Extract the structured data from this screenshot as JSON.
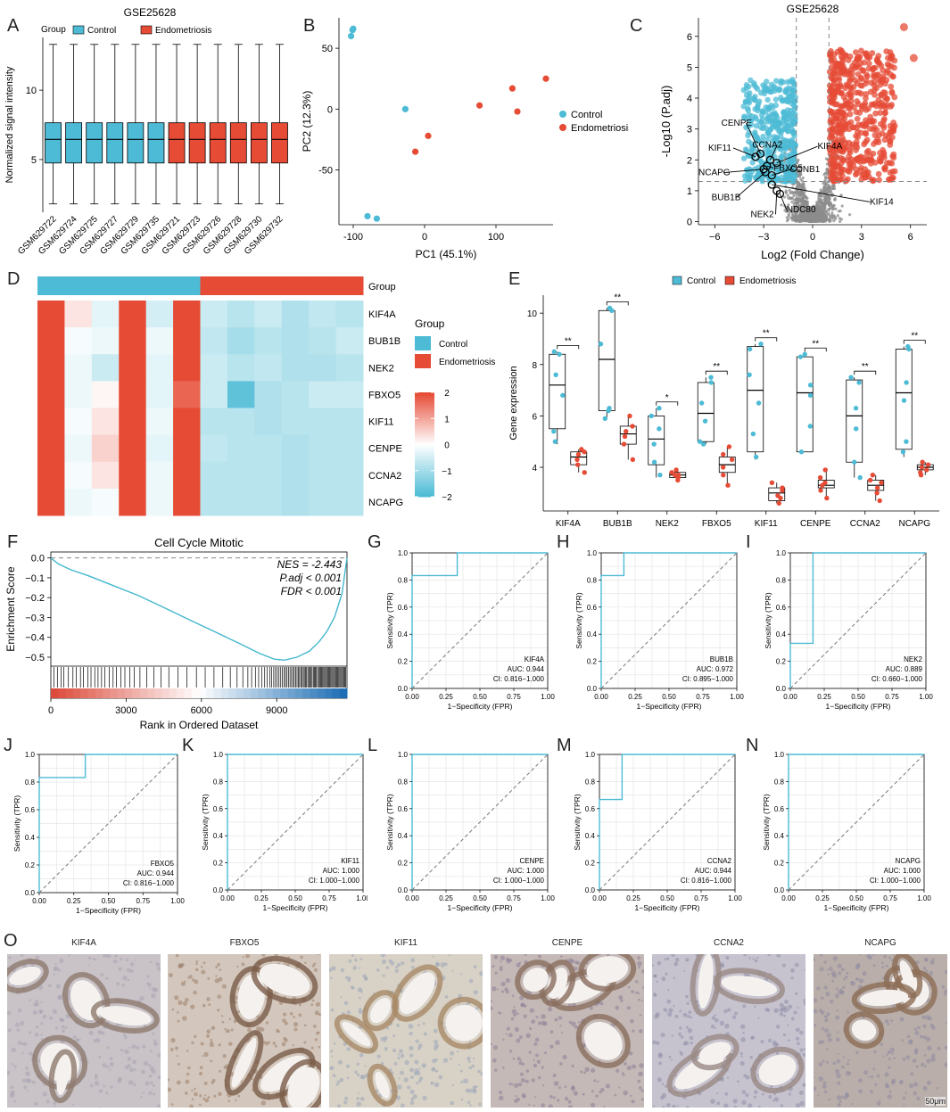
{
  "colors": {
    "control": "#4DBBD5",
    "endo": "#E64B35",
    "ns": "#8c8c8c",
    "roc": "#4DBBD5"
  },
  "panel_letters": [
    "A",
    "B",
    "C",
    "D",
    "E",
    "F",
    "G",
    "H",
    "I",
    "J",
    "K",
    "L",
    "M",
    "N",
    "O"
  ],
  "chart_data": [
    {
      "id": "A",
      "type": "box",
      "title": "GSE25628",
      "legend_title": "Group",
      "legend": [
        "Control",
        "Endometriosis"
      ],
      "ylabel": "Normalized signal intensity",
      "yticks": [
        5,
        10
      ],
      "ylim": [
        1.2,
        13.8
      ],
      "categories": [
        "GSM629722",
        "GSM629724",
        "GSM629725",
        "GSM629727",
        "GSM629729",
        "GSM629735",
        "GSM629721",
        "GSM629723",
        "GSM629726",
        "GSM629728",
        "GSM629730",
        "GSM629732"
      ],
      "groups": [
        "Control",
        "Control",
        "Control",
        "Control",
        "Control",
        "Control",
        "Endometriosis",
        "Endometriosis",
        "Endometriosis",
        "Endometriosis",
        "Endometriosis",
        "Endometriosis"
      ],
      "stats": {
        "min": 1.8,
        "q1": 4.75,
        "median": 6.45,
        "q3": 7.65,
        "max": 13.3
      }
    },
    {
      "id": "B",
      "type": "scatter",
      "xlabel": "PC1 (45.1%)",
      "ylabel": "PC2 (12.3%)",
      "xticks": [
        -100,
        0,
        100
      ],
      "yticks": [
        -50,
        0,
        50
      ],
      "xlim": [
        -120,
        180
      ],
      "ylim": [
        -95,
        75
      ],
      "legend": [
        "Control",
        "Endometriosis"
      ],
      "series": [
        {
          "name": "Control",
          "points": [
            [
              -100,
              66
            ],
            [
              -103,
              60
            ],
            [
              -27,
              0
            ],
            [
              -80,
              -88
            ],
            [
              -67,
              -90
            ],
            [
              -101,
              65
            ]
          ]
        },
        {
          "name": "Endometriosis",
          "points": [
            [
              -13,
              -35
            ],
            [
              5,
              -22
            ],
            [
              77,
              3
            ],
            [
              123,
              17
            ],
            [
              130,
              -2
            ],
            [
              170,
              25
            ]
          ]
        }
      ]
    },
    {
      "id": "C",
      "type": "volcano",
      "title": "GSE25628",
      "xlabel": "Log2 (Fold Change)",
      "ylabel": "-Log10 (P.adj)",
      "xticks": [
        -6,
        -3,
        0,
        3,
        6
      ],
      "yticks": [
        0,
        1,
        2,
        3,
        4,
        5,
        6
      ],
      "xlim": [
        -7,
        7
      ],
      "ylim": [
        -0.1,
        6.6
      ],
      "fc_threshold": 1,
      "p_threshold": 1.3,
      "labels": [
        {
          "gene": "CENPE",
          "x": -3.2,
          "y": 2.2
        },
        {
          "gene": "KIF11",
          "x": -3.5,
          "y": 2.1
        },
        {
          "gene": "CCNA2",
          "x": -2.6,
          "y": 2.0
        },
        {
          "gene": "KIF4A",
          "x": -2.2,
          "y": 1.9
        },
        {
          "gene": "FBXO5",
          "x": -2.8,
          "y": 1.8
        },
        {
          "gene": "NCAPG",
          "x": -3.0,
          "y": 1.7
        },
        {
          "gene": "CCNB1",
          "x": -2.5,
          "y": 1.5
        },
        {
          "gene": "BUB1B",
          "x": -2.9,
          "y": 1.6
        },
        {
          "gene": "KIF14",
          "x": -2.5,
          "y": 1.2
        },
        {
          "gene": "NEK2",
          "x": -2.2,
          "y": 1.0
        },
        {
          "gene": "NDC80",
          "x": -2.0,
          "y": 0.9
        }
      ]
    },
    {
      "id": "D",
      "type": "heatmap",
      "col_group_label": "Group",
      "legend_title": "Group",
      "legend": [
        "Control",
        "Endometriosis"
      ],
      "groups": [
        "Control",
        "Control",
        "Control",
        "Control",
        "Control",
        "Control",
        "Endometriosis",
        "Endometriosis",
        "Endometriosis",
        "Endometriosis",
        "Endometriosis",
        "Endometriosis"
      ],
      "rows": [
        "KIF4A",
        "BUB1B",
        "NEK2",
        "FBXO5",
        "KIF11",
        "CENPE",
        "CCNA2",
        "NCAPG"
      ],
      "scale_ticks": [
        2,
        1,
        0,
        -1,
        -2
      ],
      "values": [
        [
          2.0,
          0.3,
          -0.3,
          2.0,
          -0.5,
          2.0,
          -0.6,
          -0.8,
          -0.6,
          -0.9,
          -0.7,
          -0.8
        ],
        [
          2.0,
          -0.1,
          -0.2,
          2.0,
          -0.2,
          2.0,
          -0.7,
          -1.0,
          -0.8,
          -0.9,
          -0.8,
          -0.6
        ],
        [
          2.0,
          -0.2,
          -0.6,
          2.0,
          -0.3,
          2.0,
          -0.6,
          -0.8,
          -0.7,
          -0.9,
          -0.9,
          -0.8
        ],
        [
          2.0,
          -0.2,
          0.1,
          2.0,
          -0.3,
          1.7,
          -0.6,
          -1.8,
          -0.9,
          -0.8,
          -0.6,
          -0.6
        ],
        [
          2.0,
          -0.1,
          0.3,
          2.0,
          -0.2,
          2.0,
          -0.8,
          -0.8,
          -0.9,
          -0.8,
          -0.8,
          -0.8
        ],
        [
          2.0,
          -0.2,
          0.5,
          2.0,
          -0.3,
          2.0,
          -0.7,
          -0.8,
          -0.8,
          -0.9,
          -0.8,
          -0.8
        ],
        [
          2.0,
          -0.1,
          0.3,
          2.0,
          -0.2,
          2.0,
          -0.8,
          -0.8,
          -0.8,
          -0.9,
          -0.8,
          -0.8
        ],
        [
          2.0,
          -0.2,
          -0.1,
          2.0,
          -0.2,
          2.0,
          -0.8,
          -0.8,
          -0.8,
          -0.9,
          -0.8,
          -0.8
        ]
      ]
    },
    {
      "id": "E",
      "type": "box",
      "ylabel": "Gene expression",
      "yticks": [
        4,
        6,
        8,
        10
      ],
      "ylim": [
        2.3,
        10.7
      ],
      "legend": [
        "Control",
        "Endometriosis"
      ],
      "categories": [
        "KIF4A",
        "BUB1B",
        "NEK2",
        "FBXO5",
        "KIF11",
        "CENPE",
        "CCNA2",
        "NCAPG"
      ],
      "significance": [
        "**",
        "**",
        "*",
        "**",
        "**",
        "**",
        "**",
        "**"
      ],
      "control": [
        {
          "min": 4.9,
          "q1": 5.5,
          "median": 7.2,
          "q3": 8.4,
          "max": 8.5,
          "points": [
            5.0,
            5.4,
            6.8,
            7.6,
            8.4,
            8.5
          ]
        },
        {
          "min": 5.9,
          "q1": 6.2,
          "median": 8.2,
          "q3": 10.1,
          "max": 10.2,
          "points": [
            5.9,
            6.2,
            6.3,
            8.8,
            10.1,
            10.2
          ]
        },
        {
          "min": 3.6,
          "q1": 4.1,
          "median": 5.1,
          "q3": 6.0,
          "max": 6.3,
          "points": [
            3.7,
            4.2,
            4.9,
            5.5,
            6.0,
            6.3
          ]
        },
        {
          "min": 4.9,
          "q1": 5.0,
          "median": 6.1,
          "q3": 7.3,
          "max": 7.5,
          "points": [
            4.9,
            5.0,
            5.8,
            6.5,
            7.3,
            7.5
          ]
        },
        {
          "min": 4.3,
          "q1": 4.6,
          "median": 7.0,
          "q3": 8.7,
          "max": 8.8,
          "points": [
            4.4,
            5.3,
            6.5,
            7.6,
            8.6,
            8.8
          ]
        },
        {
          "min": 4.6,
          "q1": 4.6,
          "median": 6.9,
          "q3": 8.3,
          "max": 8.4,
          "points": [
            4.6,
            5.6,
            6.8,
            7.2,
            8.3,
            8.4
          ]
        },
        {
          "min": 3.6,
          "q1": 4.2,
          "median": 6.0,
          "q3": 7.4,
          "max": 7.5,
          "points": [
            3.6,
            4.2,
            5.5,
            6.3,
            7.3,
            7.5
          ]
        },
        {
          "min": 4.4,
          "q1": 4.7,
          "median": 6.9,
          "q3": 8.6,
          "max": 8.7,
          "points": [
            4.6,
            5.0,
            6.6,
            7.3,
            8.6,
            8.7
          ]
        }
      ],
      "endo": [
        {
          "min": 3.8,
          "q1": 4.1,
          "median": 4.4,
          "q3": 4.6,
          "max": 4.7,
          "points": [
            3.8,
            4.1,
            4.3,
            4.5,
            4.6,
            4.7
          ]
        },
        {
          "min": 4.3,
          "q1": 4.9,
          "median": 5.3,
          "q3": 5.6,
          "max": 6.0,
          "points": [
            4.3,
            4.9,
            5.2,
            5.4,
            5.6,
            6.0
          ]
        },
        {
          "min": 3.5,
          "q1": 3.6,
          "median": 3.7,
          "q3": 3.8,
          "max": 3.9,
          "points": [
            3.5,
            3.6,
            3.7,
            3.7,
            3.8,
            3.9
          ]
        },
        {
          "min": 3.3,
          "q1": 3.8,
          "median": 4.1,
          "q3": 4.4,
          "max": 4.8,
          "points": [
            3.3,
            3.7,
            4.0,
            4.3,
            4.5,
            4.8
          ]
        },
        {
          "min": 2.6,
          "q1": 2.7,
          "median": 3.0,
          "q3": 3.2,
          "max": 3.4,
          "points": [
            2.6,
            2.8,
            2.9,
            3.1,
            3.2,
            3.4
          ]
        },
        {
          "min": 2.8,
          "q1": 3.2,
          "median": 3.3,
          "q3": 3.5,
          "max": 3.9,
          "points": [
            2.8,
            3.1,
            3.3,
            3.4,
            3.6,
            3.9
          ]
        },
        {
          "min": 2.7,
          "q1": 3.1,
          "median": 3.3,
          "q3": 3.5,
          "max": 3.7,
          "points": [
            2.7,
            3.0,
            3.2,
            3.4,
            3.5,
            3.7
          ]
        },
        {
          "min": 3.7,
          "q1": 3.9,
          "median": 4.0,
          "q3": 4.1,
          "max": 4.2,
          "points": [
            3.7,
            3.8,
            3.9,
            4.0,
            4.1,
            4.2
          ]
        }
      ]
    },
    {
      "id": "F",
      "type": "line",
      "title": "Cell Cycle Mitotic",
      "xlabel": "Rank in Ordered Dataset",
      "ylabel": "Enrichment Score",
      "xticks": [
        0,
        3000,
        6000,
        9000
      ],
      "yticks": [
        0.0,
        -0.1,
        -0.2,
        -0.3,
        -0.4,
        -0.5
      ],
      "xlim": [
        0,
        11800
      ],
      "ylim": [
        -0.545,
        0.03
      ],
      "stats": [
        "NES = -2.443",
        "P.adj < 0.001",
        "FDR < 0.001"
      ],
      "x": [
        0,
        300,
        800,
        1500,
        2500,
        3500,
        4500,
        5500,
        6500,
        7500,
        8300,
        8900,
        9300,
        9800,
        10300,
        10700,
        11000,
        11300,
        11600,
        11800
      ],
      "y": [
        0,
        -0.03,
        -0.06,
        -0.09,
        -0.14,
        -0.19,
        -0.25,
        -0.31,
        -0.37,
        -0.43,
        -0.48,
        -0.51,
        -0.515,
        -0.5,
        -0.47,
        -0.42,
        -0.37,
        -0.3,
        -0.18,
        0.0
      ],
      "hit_ranks": [
        120,
        260,
        410,
        520,
        700,
        880,
        1010,
        1180,
        1300,
        1470,
        1600,
        1750,
        1880,
        2020,
        2150,
        2330,
        2480,
        2610,
        2790,
        2950,
        3140,
        3320,
        3550,
        3820,
        4100,
        4390,
        4700,
        5060,
        5420,
        5800,
        6150,
        6500,
        6850,
        7150,
        7420,
        7650,
        7850,
        8000,
        8150,
        8280,
        8400,
        8520,
        8620,
        8720,
        8800,
        8880,
        8950,
        9020,
        9090,
        9160,
        9220,
        9290,
        9350,
        9410,
        9470,
        9530,
        9590,
        9650,
        9700,
        9760,
        9810,
        9860,
        9910,
        9960,
        10010,
        10060,
        10100,
        10150,
        10190,
        10240,
        10280,
        10330,
        10370,
        10410,
        10460,
        10500,
        10540,
        10580,
        10630,
        10670,
        10710,
        10750,
        10790,
        10830,
        10870,
        10910,
        10950,
        10990,
        11030,
        11070,
        11110,
        11150,
        11190,
        11230,
        11270,
        11310,
        11350,
        11390,
        11430,
        11470,
        11510,
        11550,
        11590,
        11630,
        11670,
        11710,
        11750
      ]
    },
    {
      "id": "G",
      "type": "line",
      "gene": "KIF4A",
      "auc": "AUC: 0.944",
      "ci": "CI: 0.816−1.000",
      "xlabel": "1−Specificity (FPR)",
      "ylabel": "Sensitivity (TPR)",
      "xticks": [
        0.0,
        0.25,
        0.5,
        0.75,
        1.0
      ],
      "yticks": [
        0.0,
        0.2,
        0.4,
        0.6,
        0.8,
        1.0
      ],
      "fpr": [
        0,
        0,
        0.333,
        0.333,
        1
      ],
      "tpr": [
        0,
        0.833,
        0.833,
        1,
        1
      ]
    },
    {
      "id": "H",
      "type": "line",
      "gene": "BUB1B",
      "auc": "AUC: 0.972",
      "ci": "CI: 0.895−1.000",
      "xlabel": "1−Specificity (FPR)",
      "ylabel": "Sensitivity (TPR)",
      "xticks": [
        0.0,
        0.25,
        0.5,
        0.75,
        1.0
      ],
      "yticks": [
        0.0,
        0.2,
        0.4,
        0.6,
        0.8,
        1.0
      ],
      "fpr": [
        0,
        0,
        0.167,
        0.167,
        1
      ],
      "tpr": [
        0,
        0.833,
        0.833,
        1,
        1
      ]
    },
    {
      "id": "I",
      "type": "line",
      "gene": "NEK2",
      "auc": "AUC: 0.889",
      "ci": "CI: 0.660−1.000",
      "xlabel": "1−Specificity (FPR)",
      "ylabel": "Sensitivity (TPR)",
      "xticks": [
        0.0,
        0.25,
        0.5,
        0.75,
        1.0
      ],
      "yticks": [
        0.0,
        0.2,
        0.4,
        0.6,
        0.8,
        1.0
      ],
      "fpr": [
        0,
        0,
        0.167,
        0.167,
        1
      ],
      "tpr": [
        0,
        0.333,
        0.333,
        1,
        1
      ]
    },
    {
      "id": "J",
      "type": "line",
      "gene": "FBXO5",
      "auc": "AUC: 0.944",
      "ci": "CI: 0.816−1.000",
      "xlabel": "1−Specificity (FPR)",
      "ylabel": "Sensitivity (TPR)",
      "xticks": [
        0.0,
        0.25,
        0.5,
        0.75,
        1.0
      ],
      "yticks": [
        0.0,
        0.2,
        0.4,
        0.6,
        0.8,
        1.0
      ],
      "fpr": [
        0,
        0,
        0.333,
        0.333,
        1
      ],
      "tpr": [
        0,
        0.833,
        0.833,
        1,
        1
      ]
    },
    {
      "id": "K",
      "type": "line",
      "gene": "KIF11",
      "auc": "AUC: 1.000",
      "ci": "CI: 1.000−1.000",
      "xlabel": "1−Specificity (FPR)",
      "ylabel": "Sensitivity (TPR)",
      "xticks": [
        0.0,
        0.25,
        0.5,
        0.75,
        1.0
      ],
      "yticks": [
        0.0,
        0.2,
        0.4,
        0.6,
        0.8,
        1.0
      ],
      "fpr": [
        0,
        0,
        1
      ],
      "tpr": [
        0,
        1,
        1
      ]
    },
    {
      "id": "L",
      "type": "line",
      "gene": "CENPE",
      "auc": "AUC: 1.000",
      "ci": "CI: 1.000−1.000",
      "xlabel": "1−Specificity (FPR)",
      "ylabel": "Sensitivity (TPR)",
      "xticks": [
        0.0,
        0.25,
        0.5,
        0.75,
        1.0
      ],
      "yticks": [
        0.0,
        0.2,
        0.4,
        0.6,
        0.8,
        1.0
      ],
      "fpr": [
        0,
        0,
        1
      ],
      "tpr": [
        0,
        1,
        1
      ]
    },
    {
      "id": "M",
      "type": "line",
      "gene": "CCNA2",
      "auc": "AUC: 0.944",
      "ci": "CI: 0.816−1.000",
      "xlabel": "1−Specificity (FPR)",
      "ylabel": "Sensitivity (TPR)",
      "xticks": [
        0.0,
        0.25,
        0.5,
        0.75,
        1.0
      ],
      "yticks": [
        0.0,
        0.2,
        0.4,
        0.6,
        0.8,
        1.0
      ],
      "fpr": [
        0,
        0,
        0.167,
        0.167,
        1
      ],
      "tpr": [
        0,
        0.667,
        0.667,
        1,
        1
      ]
    },
    {
      "id": "N",
      "type": "line",
      "gene": "NCAPG",
      "auc": "AUC: 1.000",
      "ci": "CI: 1.000−1.000",
      "xlabel": "1−Specificity (FPR)",
      "ylabel": "Sensitivity (TPR)",
      "xticks": [
        0.0,
        0.25,
        0.5,
        0.75,
        1.0
      ],
      "yticks": [
        0.0,
        0.2,
        0.4,
        0.6,
        0.8,
        1.0
      ],
      "fpr": [
        0,
        0,
        1
      ],
      "tpr": [
        0,
        1,
        1
      ]
    }
  ],
  "ihc": {
    "tiles": [
      {
        "label": "KIF4A",
        "bg": "#c9c3c8",
        "gland": "#8f7b6e",
        "tone": "#a8a3b0"
      },
      {
        "label": "FBXO5",
        "bg": "#d3c7bd",
        "gland": "#7a5d48",
        "tone": "#9c7f6b"
      },
      {
        "label": "KIF11",
        "bg": "#d8d1c6",
        "gland": "#a98a66",
        "tone": "#9aa5b8"
      },
      {
        "label": "CENPE",
        "bg": "#c4b9b6",
        "gland": "#8a6e5e",
        "tone": "#8e8098"
      },
      {
        "label": "CCNA2",
        "bg": "#c6c2ce",
        "gland": "#9a8a84",
        "tone": "#8f8fa8"
      },
      {
        "label": "NCAPG",
        "bg": "#b9aea9",
        "gland": "#8c6d55",
        "tone": "#8f8aa0"
      }
    ],
    "scale_bar": "50μm"
  }
}
